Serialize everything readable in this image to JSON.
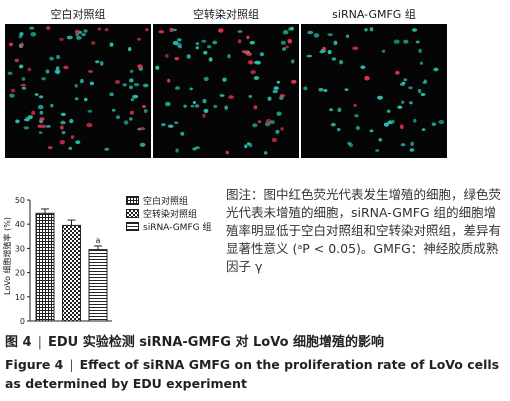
{
  "panels": [
    {
      "title": "空白对照组"
    },
    {
      "title": "空转染对照组"
    },
    {
      "title": "siRNA-GMFG 组"
    }
  ],
  "colors": {
    "red_cell": "#e8354f",
    "green_cell": "#2bbfb0",
    "background": "#050505"
  },
  "chart_data": {
    "type": "bar",
    "categories": [
      "空白对照组",
      "空转染对照组",
      "siRNA-GMFG 组"
    ],
    "values": [
      44.5,
      39.5,
      29.5
    ],
    "errors": [
      1.8,
      2.2,
      1.5
    ],
    "ylabel": "LoVo 细胞增殖率 (%)",
    "yticks": [
      0,
      10,
      20,
      30,
      40,
      50
    ],
    "ylim": [
      0,
      50
    ],
    "annotation": "a",
    "legend_position": "right",
    "patterns": [
      "plaid",
      "checker",
      "stripes"
    ]
  },
  "note": {
    "text": "图注：图中红色荧光代表发生增殖的细胞，绿色荧光代表未增殖的细胞，siRNA-GMFG 组的细胞增殖率明显低于空白对照组和空转染对照组，差异有显著性意义 (ᵃP < 0.05)。GMFG：神经胶质成熟因子 γ"
  },
  "caption": {
    "cn_label": "图 4",
    "cn_text": "EDU 实验检测 siRNA-GMFG 对 LoVo 细胞增殖的影响",
    "en_label": "Figure 4",
    "en_text": "Effect of siRNA GMFG on the proliferation rate of LoVo cells as determined by EDU experiment",
    "separator": "|"
  }
}
